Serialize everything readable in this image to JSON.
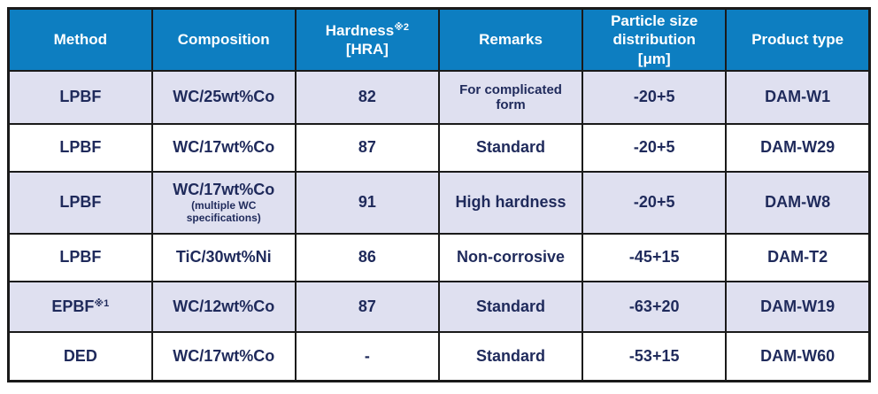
{
  "header": {
    "method": "Method",
    "composition": "Composition",
    "hardness_main": "Hardness",
    "hardness_sup": "※2",
    "hardness_unit": "[HRA]",
    "remarks": "Remarks",
    "particle_label": "Particle size distribution",
    "particle_unit": "[μm]",
    "product": "Product type"
  },
  "rows": [
    {
      "method": "LPBF",
      "method_sup": "",
      "composition": "WC/25wt%Co",
      "composition_note": "",
      "hardness": "82",
      "remarks": "For complicated form",
      "remarks_small": true,
      "particle": "-20+5",
      "product": "DAM-W1"
    },
    {
      "method": "LPBF",
      "method_sup": "",
      "composition": "WC/17wt%Co",
      "composition_note": "",
      "hardness": "87",
      "remarks": "Standard",
      "remarks_small": false,
      "particle": "-20+5",
      "product": "DAM-W29"
    },
    {
      "method": "LPBF",
      "method_sup": "",
      "composition": "WC/17wt%Co",
      "composition_note": "(multiple WC specifications)",
      "hardness": "91",
      "remarks": "High hardness",
      "remarks_small": false,
      "particle": "-20+5",
      "product": "DAM-W8"
    },
    {
      "method": "LPBF",
      "method_sup": "",
      "composition": "TiC/30wt%Ni",
      "composition_note": "",
      "hardness": "86",
      "remarks": "Non-corrosive",
      "remarks_small": false,
      "particle": "-45+15",
      "product": "DAM-T2"
    },
    {
      "method": "EPBF",
      "method_sup": "※1",
      "composition": "WC/12wt%Co",
      "composition_note": "",
      "hardness": "87",
      "remarks": "Standard",
      "remarks_small": false,
      "particle": "-63+20",
      "product": "DAM-W19"
    },
    {
      "method": "DED",
      "method_sup": "",
      "composition": "WC/17wt%Co",
      "composition_note": "",
      "hardness": "-",
      "remarks": "Standard",
      "remarks_small": false,
      "particle": "-53+15",
      "product": "DAM-W60"
    }
  ],
  "colors": {
    "header_bg": "#0d7ec1",
    "header_text": "#ffffff",
    "row_alt_bg": "#dfe0f0",
    "row_bg": "#ffffff",
    "cell_text": "#1f2a5b",
    "border": "#1a1a1a"
  }
}
